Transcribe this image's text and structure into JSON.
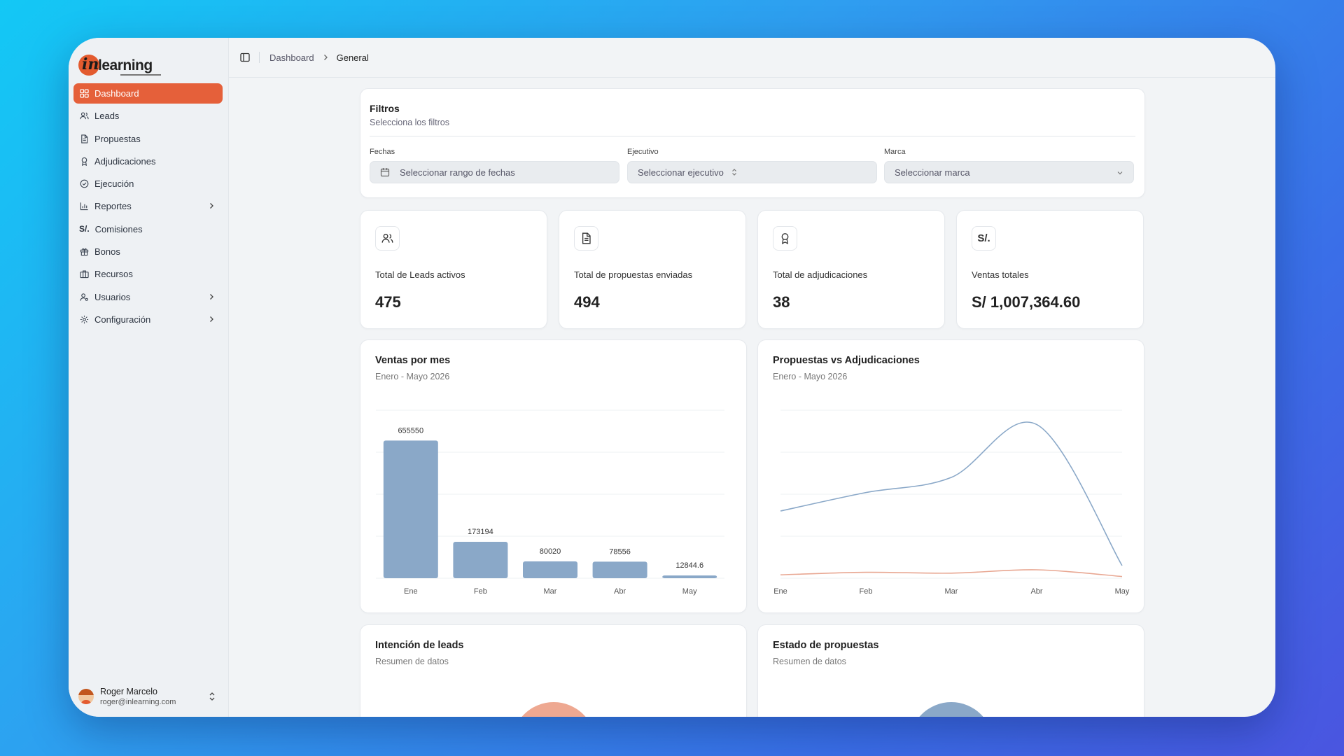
{
  "app": {
    "logo_text": "learning",
    "logo_mark": "in"
  },
  "sidebar": {
    "items": [
      {
        "label": "Dashboard",
        "icon": "dashboard-icon",
        "active": true
      },
      {
        "label": "Leads",
        "icon": "users-icon"
      },
      {
        "label": "Propuestas",
        "icon": "document-icon"
      },
      {
        "label": "Adjudicaciones",
        "icon": "award-icon"
      },
      {
        "label": "Ejecución",
        "icon": "check-circle-icon"
      },
      {
        "label": "Reportes",
        "icon": "bar-chart-icon",
        "has_children": true
      },
      {
        "label": "Comisiones",
        "icon": "sol-currency-icon",
        "icon_text": "S/."
      },
      {
        "label": "Bonos",
        "icon": "gift-icon"
      },
      {
        "label": "Recursos",
        "icon": "briefcase-icon"
      },
      {
        "label": "Usuarios",
        "icon": "user-cog-icon",
        "has_children": true
      },
      {
        "label": "Configuración",
        "icon": "gear-icon",
        "has_children": true
      }
    ],
    "user": {
      "name": "Roger Marcelo",
      "email": "roger@inlearning.com"
    }
  },
  "breadcrumb": {
    "parent": "Dashboard",
    "current": "General"
  },
  "filters": {
    "title": "Filtros",
    "subtitle": "Selecciona los filtros",
    "dates": {
      "label": "Fechas",
      "placeholder": "Seleccionar rango de fechas"
    },
    "executive": {
      "label": "Ejecutivo",
      "placeholder": "Seleccionar ejecutivo"
    },
    "brand": {
      "label": "Marca",
      "placeholder": "Seleccionar marca"
    }
  },
  "stats": [
    {
      "label": "Total de Leads activos",
      "value": "475",
      "icon": "users-icon"
    },
    {
      "label": "Total de propuestas enviadas",
      "value": "494",
      "icon": "document-icon"
    },
    {
      "label": "Total de adjudicaciones",
      "value": "38",
      "icon": "award-icon"
    },
    {
      "label": "Ventas totales",
      "value": "S/ 1,007,364.60",
      "icon": "sol-currency-icon",
      "icon_text": "S/."
    }
  ],
  "chart_data": [
    {
      "type": "bar",
      "title": "Ventas por mes",
      "subtitle": "Enero - Mayo 2026",
      "categories": [
        "Ene",
        "Feb",
        "Mar",
        "Abr",
        "May"
      ],
      "values": [
        655550,
        173194,
        80020,
        78556,
        12844.6
      ],
      "value_labels": [
        "655550",
        "173194",
        "80020",
        "78556",
        "12844.6"
      ],
      "ylim": [
        0,
        800000
      ],
      "grid": true,
      "color": "#8aa8c8"
    },
    {
      "type": "line",
      "title": "Propuestas vs Adjudicaciones",
      "subtitle": "Enero - Mayo 2026",
      "categories": [
        "Ene",
        "Feb",
        "Mar",
        "Abr",
        "May"
      ],
      "series": [
        {
          "values": [
            80,
            102,
            120,
            183,
            15
          ],
          "color": "#8aa8c8"
        },
        {
          "values": [
            4,
            7,
            6,
            10,
            2
          ],
          "color": "#e8a792"
        }
      ],
      "ylim": [
        0,
        200
      ],
      "grid": true
    }
  ],
  "bottom_cards": [
    {
      "title": "Intención de leads",
      "subtitle": "Resumen de datos",
      "color": "#eea891"
    },
    {
      "title": "Estado de propuestas",
      "subtitle": "Resumen de datos",
      "color": "#8aa8c8"
    }
  ]
}
